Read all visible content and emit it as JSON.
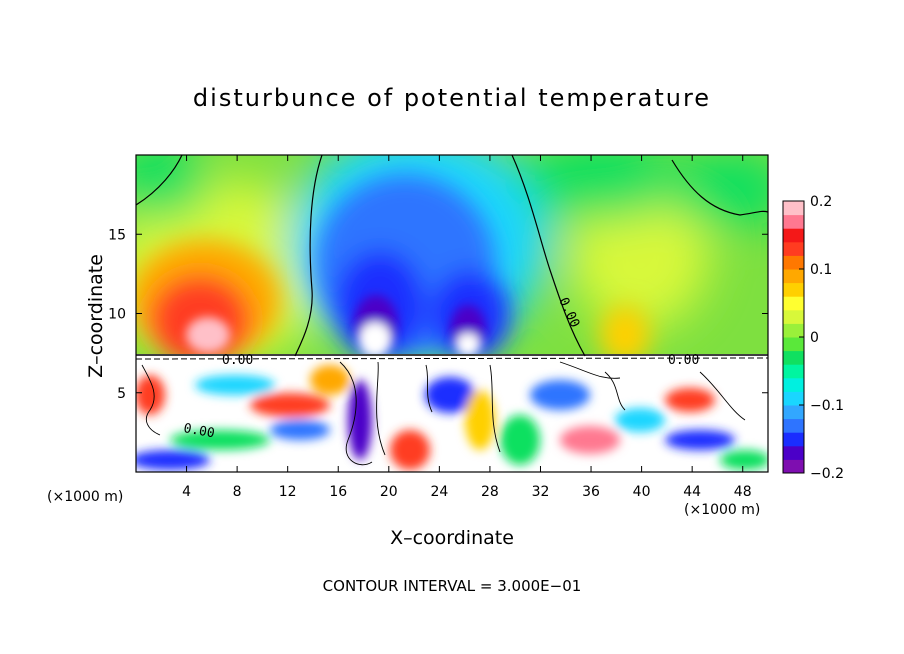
{
  "chart_data": {
    "type": "heatmap",
    "title": "disturbunce of potential temperature",
    "xlabel": "X–coordinate",
    "ylabel": "Z–coordinate",
    "x_unit": "(×1000 m)",
    "x_ticks": [
      4,
      8,
      12,
      16,
      20,
      24,
      28,
      32,
      36,
      40,
      44,
      48
    ],
    "y_ticks": [
      5,
      10,
      15
    ],
    "xlim": [
      0,
      50
    ],
    "ylim": [
      0,
      20
    ],
    "colorbar": {
      "range": [
        -0.2,
        0.2
      ],
      "ticks": [
        0.2,
        0.1,
        0,
        -0.1,
        -0.2
      ],
      "tick_labels": [
        "0.2",
        "0.1",
        "0",
        "−0.1",
        "−0.2"
      ],
      "colors": [
        "#7e0eb0",
        "#4b00c8",
        "#1a2dff",
        "#2e74ff",
        "#32a7ff",
        "#1ad6ff",
        "#00f0e0",
        "#00f5a0",
        "#10e060",
        "#5ae83a",
        "#9af03a",
        "#d8f83a",
        "#ffff30",
        "#ffd000",
        "#ffa800",
        "#ff7800",
        "#ff3c20",
        "#f41818",
        "#ff7890",
        "#ffc0c8"
      ]
    },
    "contour_interval": "CONTOUR INTERVAL = 3.000E−01",
    "contour_labels": [
      "0.00",
      "0.00",
      "0.00",
      "0.00"
    ],
    "features": [
      {
        "name": "warm anomaly",
        "x_center": 6,
        "z_center": 10.5,
        "value": 0.16
      },
      {
        "name": "cold anomaly",
        "x_center": 19.5,
        "z_center": 11,
        "value": -0.2
      },
      {
        "name": "cold anomaly",
        "x_center": 26,
        "z_center": 10,
        "value": -0.18
      },
      {
        "name": "warm anomaly",
        "x_center": 39,
        "z_center": 11,
        "value": 0.09
      },
      {
        "name": "turbulent layer",
        "z_top": 7.3,
        "value_range": [
          -0.3,
          0.3
        ]
      }
    ]
  }
}
